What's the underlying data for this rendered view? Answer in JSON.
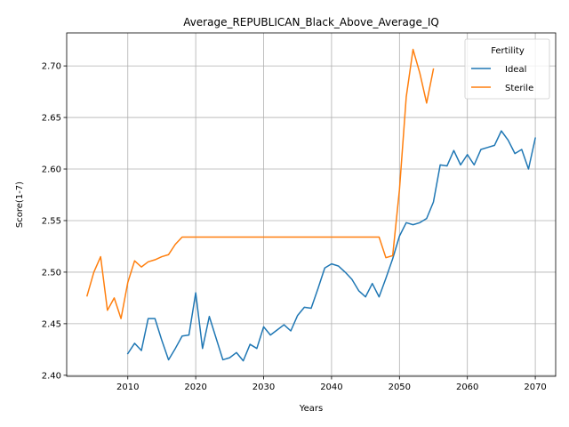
{
  "chart_data": {
    "type": "line",
    "title": "Average_REPUBLICAN_Black_Above_Average_IQ",
    "xlabel": "Years",
    "ylabel": "Score(1-7)",
    "xlim": [
      2001,
      2073
    ],
    "ylim": [
      2.399,
      2.732
    ],
    "xticks": [
      2010,
      2020,
      2030,
      2040,
      2050,
      2060,
      2070
    ],
    "yticks": [
      2.4,
      2.45,
      2.5,
      2.55,
      2.6,
      2.65,
      2.7
    ],
    "ytick_labels": [
      "2.40",
      "2.45",
      "2.50",
      "2.55",
      "2.60",
      "2.65",
      "2.70"
    ],
    "grid": true,
    "legend": {
      "title": "Fertility",
      "placement": "top-right"
    },
    "series": [
      {
        "name": "Ideal",
        "color": "#1f77b4",
        "x": [
          2010,
          2011,
          2012,
          2013,
          2014,
          2015,
          2016,
          2017,
          2018,
          2019,
          2020,
          2021,
          2022,
          2023,
          2024,
          2025,
          2026,
          2027,
          2028,
          2029,
          2030,
          2031,
          2032,
          2033,
          2034,
          2035,
          2036,
          2037,
          2038,
          2039,
          2040,
          2041,
          2042,
          2043,
          2044,
          2045,
          2046,
          2047,
          2048,
          2049,
          2050,
          2051,
          2052,
          2053,
          2054,
          2055,
          2056,
          2057,
          2058,
          2059,
          2060,
          2061,
          2062,
          2063,
          2064,
          2065,
          2066,
          2067,
          2068,
          2069,
          2070
        ],
        "y": [
          2.421,
          2.431,
          2.424,
          2.455,
          2.455,
          2.434,
          2.415,
          2.426,
          2.438,
          2.439,
          2.48,
          2.426,
          2.457,
          2.436,
          2.415,
          2.417,
          2.422,
          2.414,
          2.43,
          2.426,
          2.447,
          2.439,
          2.444,
          2.449,
          2.443,
          2.458,
          2.466,
          2.465,
          2.484,
          2.504,
          2.508,
          2.506,
          2.5,
          2.493,
          2.482,
          2.476,
          2.489,
          2.476,
          2.494,
          2.513,
          2.535,
          2.548,
          2.546,
          2.548,
          2.552,
          2.568,
          2.604,
          2.603,
          2.618,
          2.604,
          2.614,
          2.604,
          2.619,
          2.621,
          2.623,
          2.637,
          2.628,
          2.615,
          2.619,
          2.6,
          2.63
        ]
      },
      {
        "name": "Sterile",
        "color": "#ff7f0e",
        "x": [
          2004,
          2005,
          2006,
          2007,
          2008,
          2009,
          2010,
          2011,
          2012,
          2013,
          2014,
          2015,
          2016,
          2017,
          2018,
          2019,
          2020,
          2025,
          2030,
          2035,
          2040,
          2045,
          2047,
          2048,
          2049,
          2050,
          2051,
          2052,
          2053,
          2054,
          2055
        ],
        "y": [
          2.477,
          2.5,
          2.515,
          2.463,
          2.475,
          2.455,
          2.49,
          2.511,
          2.505,
          2.51,
          2.512,
          2.515,
          2.517,
          2.527,
          2.534,
          2.534,
          2.534,
          2.534,
          2.534,
          2.534,
          2.534,
          2.534,
          2.534,
          2.514,
          2.516,
          2.58,
          2.67,
          2.716,
          2.693,
          2.664,
          2.697
        ]
      }
    ]
  }
}
